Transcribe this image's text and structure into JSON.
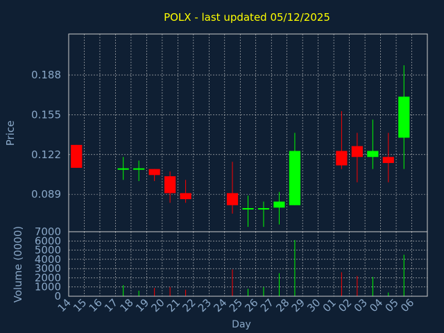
{
  "colors": {
    "background": "#0f1f33",
    "title": "#ffff00",
    "axis_text": "#8aa8c8",
    "frame": "#cccccc",
    "grid": "#cccccc",
    "up": "#00ff00",
    "down": "#ff0000",
    "wick_up": "#00ff00",
    "wick_down": "#ff0000"
  },
  "chart_data": [
    {
      "type": "candlestick",
      "title": "POLX - last updated 05/12/2025",
      "ylabel": "Price",
      "yticks": [
        "0.089",
        "0.122",
        "0.155",
        "0.188"
      ],
      "ylim": [
        0.058,
        0.222
      ],
      "categories": [
        "14",
        "15",
        "16",
        "17",
        "18",
        "19",
        "20",
        "21",
        "22",
        "23",
        "24",
        "25",
        "26",
        "27",
        "28",
        "29",
        "30",
        "01",
        "02",
        "03",
        "04",
        "05",
        "06"
      ],
      "candles": [
        {
          "day": "14",
          "open": 0.13,
          "close": 0.111,
          "high": 0.13,
          "low": 0.111
        },
        {
          "day": "17",
          "open": 0.11,
          "close": 0.11,
          "high": 0.12,
          "low": 0.101
        },
        {
          "day": "18",
          "open": 0.11,
          "close": 0.11,
          "high": 0.117,
          "low": 0.1
        },
        {
          "day": "19",
          "open": 0.11,
          "close": 0.105,
          "high": 0.11,
          "low": 0.1
        },
        {
          "day": "20",
          "open": 0.104,
          "close": 0.09,
          "high": 0.108,
          "low": 0.082
        },
        {
          "day": "21",
          "open": 0.09,
          "close": 0.085,
          "high": 0.101,
          "low": 0.082
        },
        {
          "day": "24",
          "open": 0.09,
          "close": 0.08,
          "high": 0.116,
          "low": 0.073
        },
        {
          "day": "25",
          "open": 0.077,
          "close": 0.077,
          "high": 0.088,
          "low": 0.062
        },
        {
          "day": "26",
          "open": 0.077,
          "close": 0.077,
          "high": 0.083,
          "low": 0.062
        },
        {
          "day": "27",
          "open": 0.078,
          "close": 0.083,
          "high": 0.091,
          "low": 0.064
        },
        {
          "day": "28",
          "open": 0.08,
          "close": 0.125,
          "high": 0.14,
          "low": 0.08
        },
        {
          "day": "01",
          "open": 0.125,
          "close": 0.113,
          "high": 0.158,
          "low": 0.11
        },
        {
          "day": "02",
          "open": 0.129,
          "close": 0.12,
          "high": 0.14,
          "low": 0.099
        },
        {
          "day": "03",
          "open": 0.12,
          "close": 0.125,
          "high": 0.151,
          "low": 0.11
        },
        {
          "day": "04",
          "open": 0.12,
          "close": 0.115,
          "high": 0.14,
          "low": 0.099
        },
        {
          "day": "05",
          "open": 0.136,
          "close": 0.17,
          "high": 0.196,
          "low": 0.11
        }
      ]
    },
    {
      "type": "bar",
      "xlabel": "Day",
      "ylabel": "Volume (0000)",
      "yticks": [
        "0",
        "1000",
        "2000",
        "3000",
        "4000",
        "5000",
        "6000",
        "7000"
      ],
      "ylim": [
        0,
        7000
      ],
      "categories": [
        "14",
        "15",
        "16",
        "17",
        "18",
        "19",
        "20",
        "21",
        "22",
        "23",
        "24",
        "25",
        "26",
        "27",
        "28",
        "29",
        "30",
        "01",
        "02",
        "03",
        "04",
        "05",
        "06"
      ],
      "bars": [
        {
          "day": "17",
          "value": 1200,
          "up": true
        },
        {
          "day": "18",
          "value": 600,
          "up": true
        },
        {
          "day": "19",
          "value": 900,
          "up": false
        },
        {
          "day": "20",
          "value": 1000,
          "up": false
        },
        {
          "day": "21",
          "value": 700,
          "up": false
        },
        {
          "day": "24",
          "value": 2900,
          "up": false
        },
        {
          "day": "25",
          "value": 800,
          "up": true
        },
        {
          "day": "26",
          "value": 1000,
          "up": true
        },
        {
          "day": "27",
          "value": 2500,
          "up": true
        },
        {
          "day": "28",
          "value": 6100,
          "up": true
        },
        {
          "day": "01",
          "value": 2600,
          "up": false
        },
        {
          "day": "02",
          "value": 2200,
          "up": false
        },
        {
          "day": "03",
          "value": 2100,
          "up": true
        },
        {
          "day": "04",
          "value": 400,
          "up": true
        },
        {
          "day": "05",
          "value": 4500,
          "up": true
        }
      ]
    }
  ]
}
